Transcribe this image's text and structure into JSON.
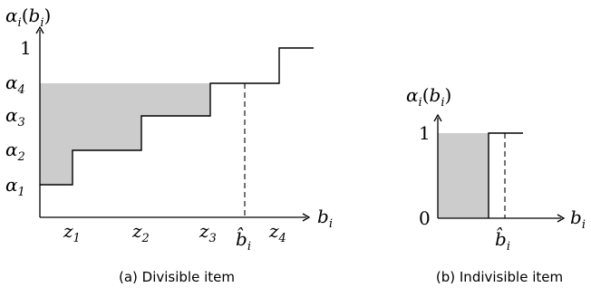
{
  "left_panel": {
    "y_axis_label": {
      "base": "α",
      "sub": "i",
      "arg_base": "b",
      "arg_sub": "i"
    },
    "x_axis_label": {
      "base": "b",
      "sub": "i"
    },
    "y_ticks": [
      {
        "base": "α",
        "sub": "1"
      },
      {
        "base": "α",
        "sub": "2"
      },
      {
        "base": "α",
        "sub": "3"
      },
      {
        "base": "α",
        "sub": "4"
      },
      {
        "base": "1",
        "sub": ""
      }
    ],
    "x_ticks": [
      {
        "base": "z",
        "sub": "1"
      },
      {
        "base": "z",
        "sub": "2"
      },
      {
        "base": "z",
        "sub": "3"
      },
      {
        "base": "z",
        "sub": "4"
      }
    ],
    "marker_label": {
      "base": "b̂",
      "sub": "i"
    },
    "caption": "(a) Divisible item"
  },
  "right_panel": {
    "y_axis_label": {
      "base": "α",
      "sub": "i",
      "arg_base": "b",
      "arg_sub": "i"
    },
    "x_axis_label": {
      "base": "b",
      "sub": "i"
    },
    "y_ticks": [
      {
        "base": "0",
        "sub": ""
      },
      {
        "base": "1",
        "sub": ""
      }
    ],
    "marker_label": {
      "base": "b̂",
      "sub": "i"
    },
    "caption": "(b) Indivisible item"
  }
}
